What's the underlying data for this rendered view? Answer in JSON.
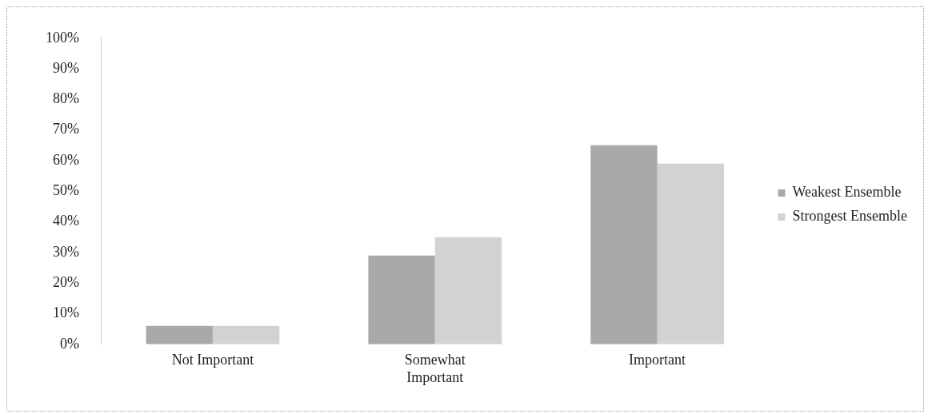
{
  "chart_data": {
    "type": "bar",
    "categories": [
      "Not Important",
      "Somewhat Important",
      "Important"
    ],
    "series": [
      {
        "name": "Weakest Ensemble",
        "color": "#a9a9a9",
        "values": [
          6,
          29,
          65
        ]
      },
      {
        "name": "Strongest Ensemble",
        "color": "#d2d2d2",
        "values": [
          6,
          35,
          59
        ]
      }
    ],
    "ylim": [
      0,
      100
    ],
    "yticks": [
      {
        "value": 0,
        "label": "0%"
      },
      {
        "value": 10,
        "label": "10%"
      },
      {
        "value": 20,
        "label": "20%"
      },
      {
        "value": 30,
        "label": "30%"
      },
      {
        "value": 40,
        "label": "40%"
      },
      {
        "value": 50,
        "label": "50%"
      },
      {
        "value": 60,
        "label": "60%"
      },
      {
        "value": 70,
        "label": "70%"
      },
      {
        "value": 80,
        "label": "80%"
      },
      {
        "value": 90,
        "label": "90%"
      },
      {
        "value": 100,
        "label": "100%"
      }
    ],
    "grid": false,
    "legend": "right"
  }
}
